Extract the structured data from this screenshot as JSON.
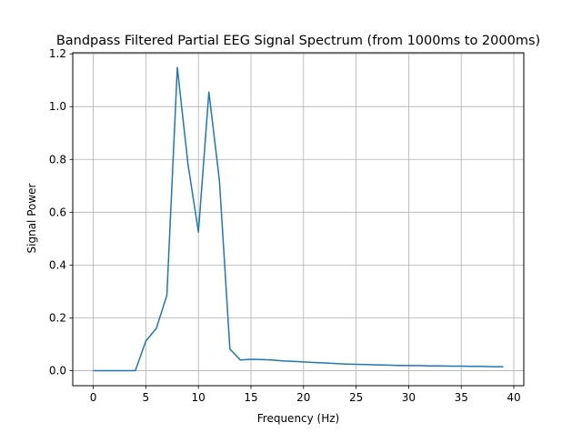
{
  "chart_data": {
    "type": "line",
    "title": "Bandpass Filtered Partial EEG Signal Spectrum (from 1000ms to 2000ms)",
    "xlabel": "Frequency (Hz)",
    "ylabel": "Signal Power",
    "xlim": [
      -1.95,
      40.95
    ],
    "ylim": [
      -0.057,
      1.204
    ],
    "grid": true,
    "line_color": "#1f77b4",
    "x_ticks": [
      "0",
      "5",
      "10",
      "15",
      "20",
      "25",
      "30",
      "35",
      "40"
    ],
    "y_ticks": [
      "0.0",
      "0.2",
      "0.4",
      "0.6",
      "0.8",
      "1.0",
      "1.2"
    ],
    "series": [
      {
        "x": [
          0,
          1,
          2,
          3,
          4,
          5,
          6,
          7,
          8,
          9,
          10,
          11,
          12,
          13,
          14,
          15,
          16,
          17,
          18,
          19,
          20,
          21,
          22,
          23,
          24,
          25,
          26,
          27,
          28,
          29,
          30,
          31,
          32,
          33,
          34,
          35,
          36,
          37,
          38,
          39
        ],
        "values": [
          0.0,
          0.0,
          0.0,
          0.0,
          0.0,
          0.112,
          0.16,
          0.285,
          1.148,
          0.785,
          0.525,
          1.055,
          0.72,
          0.082,
          0.04,
          0.043,
          0.042,
          0.04,
          0.037,
          0.035,
          0.033,
          0.031,
          0.029,
          0.027,
          0.025,
          0.024,
          0.023,
          0.022,
          0.021,
          0.02,
          0.019,
          0.019,
          0.018,
          0.018,
          0.017,
          0.017,
          0.016,
          0.016,
          0.015,
          0.015
        ]
      }
    ]
  }
}
